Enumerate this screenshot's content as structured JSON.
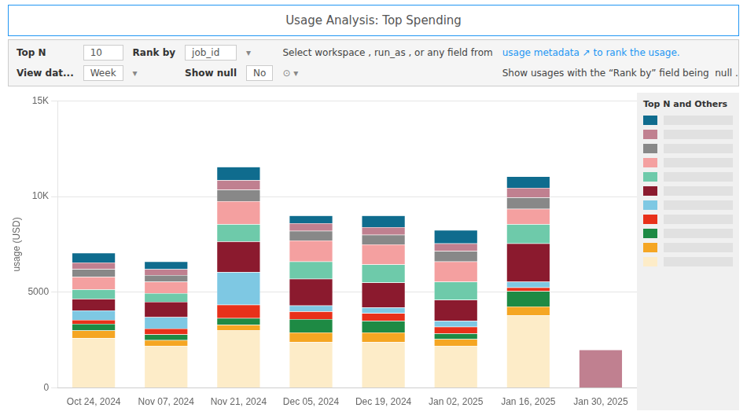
{
  "chart_data": {
    "type": "bar",
    "title": "Usage Analysis: Top Spending",
    "y_label": "usage (USD)",
    "legend_title": "Top N and Others",
    "annotations": [
      "Top N",
      "10",
      "Rank by",
      "job_id",
      "▾",
      "Select workspace , run_as , or any field from",
      "usage metadata ↗ to rank the usage.",
      "View dat...",
      "Week",
      "▾",
      "Show null",
      "No",
      "⊙ ▾",
      "Show usages with the “Rank by” field being  null ."
    ],
    "categories": [
      "Oct 24, 2024",
      "Nov 07, 2024",
      "Nov 21, 2024",
      "Dec 05, 2024",
      "Dec 19, 2024",
      "Jan 02, 2025",
      "Jan 16, 2025",
      "Jan 30, 2025"
    ],
    "series": [
      {
        "color": "#FDECC8",
        "values": [
          2600,
          2200,
          3000,
          2400,
          2400,
          2200,
          3800,
          0
        ]
      },
      {
        "color": "#F5A623",
        "values": [
          400,
          300,
          300,
          500,
          500,
          350,
          450,
          0
        ]
      },
      {
        "color": "#1E8A44",
        "values": [
          350,
          300,
          350,
          700,
          600,
          300,
          800,
          0
        ]
      },
      {
        "color": "#E8311A",
        "values": [
          200,
          300,
          700,
          400,
          400,
          350,
          200,
          0
        ]
      },
      {
        "color": "#7EC8E3",
        "values": [
          500,
          600,
          1700,
          300,
          300,
          300,
          300,
          0
        ]
      },
      {
        "color": "#8B1A2E",
        "values": [
          600,
          800,
          1600,
          1400,
          1300,
          1100,
          2000,
          0
        ]
      },
      {
        "color": "#6ECAAA",
        "values": [
          500,
          450,
          900,
          900,
          950,
          950,
          1000,
          0
        ]
      },
      {
        "color": "#F4A0A0",
        "values": [
          650,
          600,
          1200,
          1100,
          1050,
          1050,
          800,
          0
        ]
      },
      {
        "color": "#888888",
        "values": [
          400,
          350,
          600,
          500,
          500,
          550,
          600,
          0
        ]
      },
      {
        "color": "#C08090",
        "values": [
          350,
          300,
          500,
          400,
          400,
          400,
          500,
          2000
        ]
      },
      {
        "color": "#0F6C8E",
        "values": [
          500,
          400,
          700,
          400,
          600,
          700,
          600,
          0
        ]
      }
    ],
    "stacked": true,
    "ylim": [
      0,
      15000
    ],
    "yticks": [
      0,
      5000,
      {
        "value": 10000,
        "label": "10K"
      },
      {
        "value": 15000,
        "label": "15K"
      }
    ],
    "grid": true,
    "legend": "right"
  }
}
